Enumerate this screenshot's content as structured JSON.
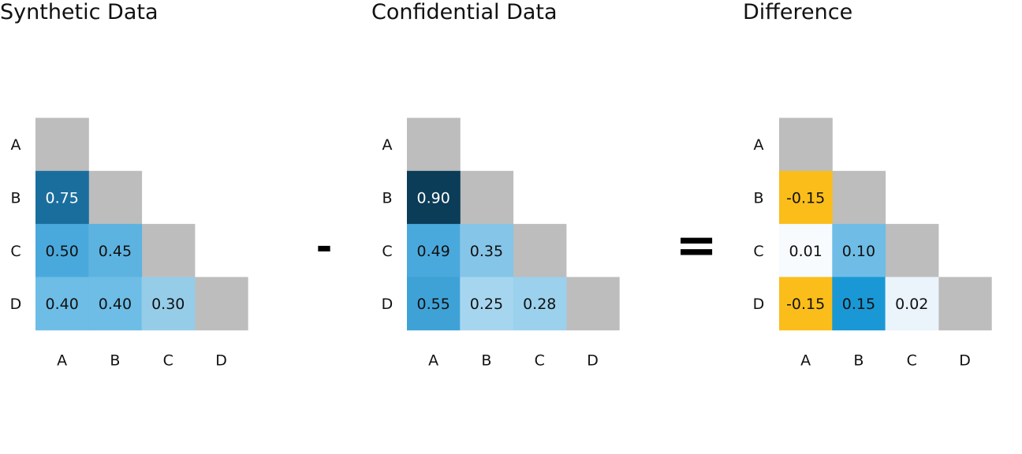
{
  "chart_data": [
    {
      "type": "heatmap",
      "title": "Synthetic Data",
      "x_categories": [
        "A",
        "B",
        "C",
        "D"
      ],
      "y_categories": [
        "A",
        "B",
        "C",
        "D"
      ],
      "cells": [
        {
          "row": "B",
          "col": "A",
          "value": "0.75",
          "color": "#1a6e9e",
          "text_color": "#ffffff"
        },
        {
          "row": "C",
          "col": "A",
          "value": "0.50",
          "color": "#4aa9dc",
          "text_color": "#111111"
        },
        {
          "row": "C",
          "col": "B",
          "value": "0.45",
          "color": "#5db3e0",
          "text_color": "#111111"
        },
        {
          "row": "D",
          "col": "A",
          "value": "0.40",
          "color": "#6dbde6",
          "text_color": "#111111"
        },
        {
          "row": "D",
          "col": "B",
          "value": "0.40",
          "color": "#6dbde6",
          "text_color": "#111111"
        },
        {
          "row": "D",
          "col": "C",
          "value": "0.30",
          "color": "#95cde9",
          "text_color": "#111111"
        }
      ]
    },
    {
      "type": "heatmap",
      "title": "Confidential Data",
      "x_categories": [
        "A",
        "B",
        "C",
        "D"
      ],
      "y_categories": [
        "A",
        "B",
        "C",
        "D"
      ],
      "cells": [
        {
          "row": "B",
          "col": "A",
          "value": "0.90",
          "color": "#0b3c58",
          "text_color": "#ffffff"
        },
        {
          "row": "C",
          "col": "A",
          "value": "0.49",
          "color": "#4aa9dc",
          "text_color": "#111111"
        },
        {
          "row": "C",
          "col": "B",
          "value": "0.35",
          "color": "#85c5e8",
          "text_color": "#111111"
        },
        {
          "row": "D",
          "col": "A",
          "value": "0.55",
          "color": "#3fa2d7",
          "text_color": "#111111"
        },
        {
          "row": "D",
          "col": "B",
          "value": "0.25",
          "color": "#a6d6ef",
          "text_color": "#111111"
        },
        {
          "row": "D",
          "col": "C",
          "value": "0.28",
          "color": "#9bd1ed",
          "text_color": "#111111"
        }
      ]
    },
    {
      "type": "heatmap",
      "title": "Difference",
      "x_categories": [
        "A",
        "B",
        "C",
        "D"
      ],
      "y_categories": [
        "A",
        "B",
        "C",
        "D"
      ],
      "cells": [
        {
          "row": "B",
          "col": "A",
          "value": "-0.15",
          "color": "#fbbd1a",
          "text_color": "#111111"
        },
        {
          "row": "C",
          "col": "A",
          "value": "0.01",
          "color": "#f7fbfd",
          "text_color": "#111111"
        },
        {
          "row": "C",
          "col": "B",
          "value": "0.10",
          "color": "#6fbde6",
          "text_color": "#111111"
        },
        {
          "row": "D",
          "col": "A",
          "value": "-0.15",
          "color": "#fbbd1a",
          "text_color": "#111111"
        },
        {
          "row": "D",
          "col": "B",
          "value": "0.15",
          "color": "#1a98d5",
          "text_color": "#111111"
        },
        {
          "row": "D",
          "col": "C",
          "value": "0.02",
          "color": "#eaf4fa",
          "text_color": "#111111"
        }
      ]
    }
  ],
  "colors": {
    "diagonal": "#bdbdbd"
  },
  "operators": [
    "-",
    "="
  ]
}
